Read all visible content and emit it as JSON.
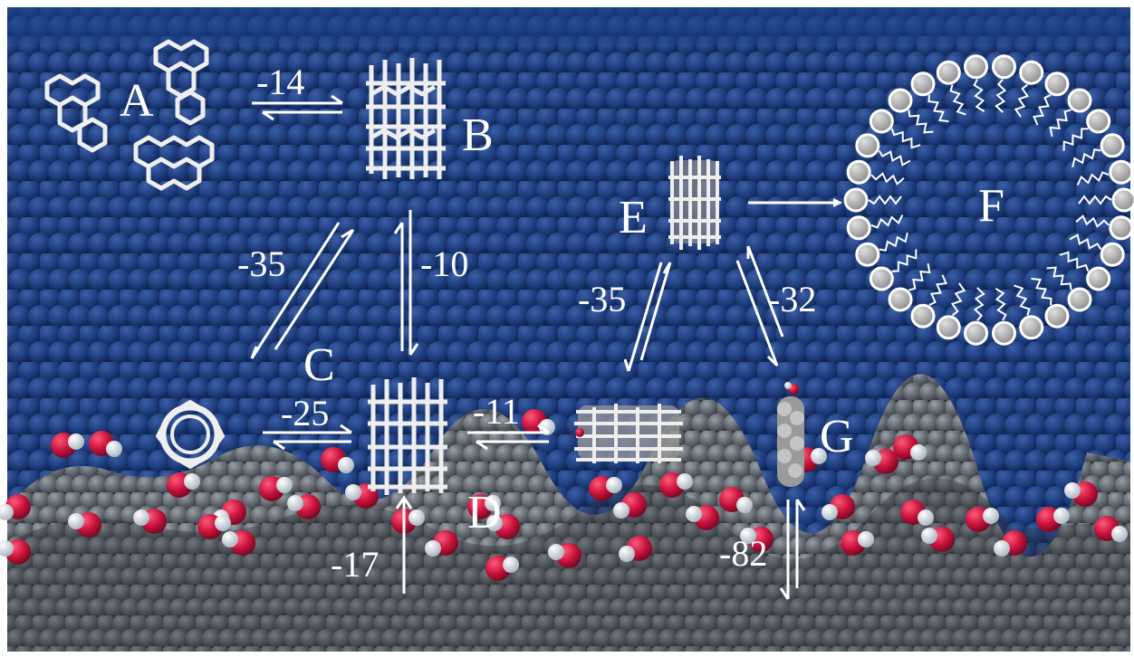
{
  "colors": {
    "water": "#1b3a78",
    "water_dark": "#0f2552",
    "membrane": "#5a5f68",
    "oxygen": "#c8123c",
    "hydrogen": "#dfe6ee",
    "molecule": "#e6e6e6",
    "arrow": "#ffffff",
    "lipid_head": "#b8b8b8"
  },
  "states": {
    "A": "A",
    "B": "B",
    "C": "C",
    "D": "D",
    "E": "E",
    "F": "F",
    "G": "G"
  },
  "transitions": {
    "A_B": "-14",
    "B_C": "-35",
    "B_D": "-10",
    "C_D": "-25",
    "D_E": "-11",
    "D_membrane": "-17",
    "E_Dside": "-35",
    "E_G": "-32",
    "G_membrane": "-82"
  },
  "icons": {
    "aggregate_A": "trimer-molecules-icon",
    "stack_B": "dimer-stack-icon",
    "ring_C": "ring-top-view-icon",
    "stack_D": "membrane-dimer-icon",
    "tube_E": "loaded-tube-icon",
    "micelle_F": "micelle-icon",
    "monomer_G": "inserted-monomer-icon"
  }
}
